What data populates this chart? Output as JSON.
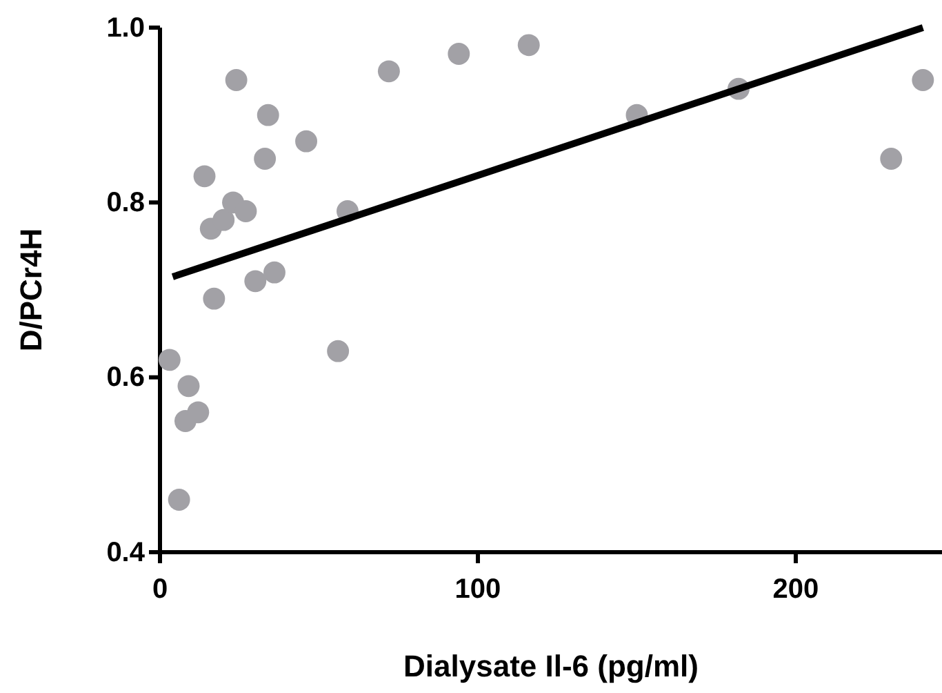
{
  "chart_data": {
    "type": "scatter",
    "xlabel": "Dialysate Il-6 (pg/ml)",
    "ylabel": "D/PCr4H",
    "xlim": [
      0,
      246
    ],
    "ylim": [
      0.4,
      1.0
    ],
    "xticks": [
      0,
      100,
      200
    ],
    "yticks": [
      0.4,
      0.6,
      0.8,
      {
        "value": 1,
        "label": "1.0"
      }
    ],
    "grid": false,
    "series": [
      {
        "marker": "circle",
        "color": "#a2a1a6",
        "x": [
          3,
          6,
          9,
          8,
          12,
          14,
          16,
          17,
          20,
          23,
          24,
          27,
          30,
          33,
          34,
          36,
          46,
          56,
          59,
          72,
          94,
          116,
          150,
          182,
          230,
          240
        ],
        "values": [
          0.62,
          0.46,
          0.59,
          0.55,
          0.56,
          0.83,
          0.77,
          0.69,
          0.78,
          0.8,
          0.94,
          0.79,
          0.71,
          0.85,
          0.9,
          0.72,
          0.87,
          0.63,
          0.79,
          0.95,
          0.97,
          0.98,
          0.9,
          0.93,
          0.85,
          0.94
        ]
      },
      {
        "type": "line",
        "color": "#000000",
        "line_style": "solid",
        "x": [
          4,
          240
        ],
        "values": [
          0.715,
          1.0
        ]
      }
    ]
  }
}
